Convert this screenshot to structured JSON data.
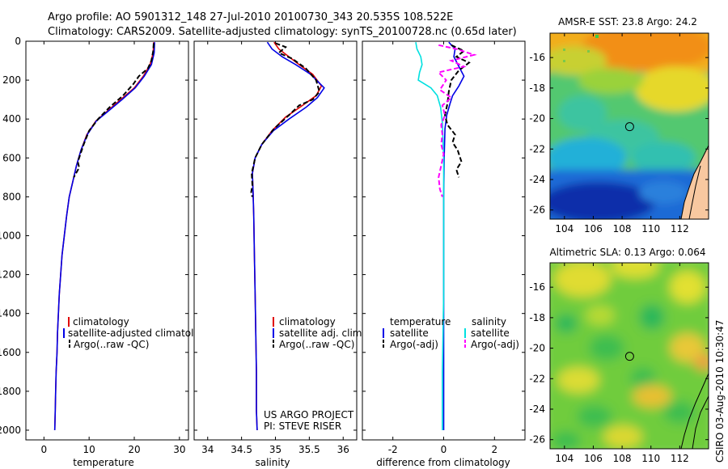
{
  "figure": {
    "title_line1": "Argo profile: AO 5901312_148 27-Jul-2010 20100730_343 20.535S 108.522E",
    "title_line2": "Climatology: CARS2009. Satellite-adjusted climatology: synTS_20100728.nc (0.65d later)",
    "credit": "CSIRO 03-Aug-2010 10:30:47",
    "project_line1": "US ARGO PROJECT",
    "project_line2": "PI: STEVE RISER"
  },
  "chart_data": [
    {
      "id": "temp",
      "type": "line",
      "xlabel": "temperature",
      "ylabel": "",
      "xlim": [
        -4,
        32
      ],
      "ylim": [
        2050,
        0
      ],
      "xticks": [
        0,
        10,
        20,
        30
      ],
      "yticks": [
        0,
        200,
        400,
        600,
        800,
        1000,
        1200,
        1400,
        1600,
        1800,
        2000
      ],
      "legend": [
        "climatology",
        "satellite-adjusted climatology",
        "Argo(..raw -QC)"
      ],
      "series": [
        {
          "name": "climatology",
          "color": "#e00000",
          "dash": "",
          "points": [
            [
              24.3,
              5
            ],
            [
              24.2,
              60
            ],
            [
              23.5,
              120
            ],
            [
              22.0,
              180
            ],
            [
              20.0,
              240
            ],
            [
              17.0,
              300
            ],
            [
              14.0,
              360
            ],
            [
              11.5,
              410
            ],
            [
              9.5,
              480
            ],
            [
              8.2,
              560
            ],
            [
              7.2,
              640
            ],
            [
              6.4,
              720
            ],
            [
              5.6,
              800
            ],
            [
              5.0,
              900
            ],
            [
              4.5,
              1000
            ],
            [
              4.0,
              1100
            ],
            [
              3.7,
              1200
            ],
            [
              3.4,
              1300
            ],
            [
              3.2,
              1400
            ],
            [
              3.0,
              1500
            ],
            [
              2.9,
              1600
            ],
            [
              2.7,
              1700
            ],
            [
              2.6,
              1800
            ],
            [
              2.5,
              1900
            ],
            [
              2.4,
              2000
            ]
          ]
        },
        {
          "name": "satellite-adjusted climatology",
          "color": "#0000e6",
          "dash": "",
          "points": [
            [
              24.5,
              5
            ],
            [
              24.4,
              60
            ],
            [
              23.8,
              120
            ],
            [
              22.2,
              180
            ],
            [
              20.2,
              240
            ],
            [
              17.3,
              300
            ],
            [
              14.2,
              360
            ],
            [
              11.6,
              410
            ],
            [
              9.6,
              480
            ],
            [
              8.2,
              560
            ],
            [
              7.2,
              640
            ],
            [
              6.4,
              720
            ],
            [
              5.6,
              800
            ],
            [
              5.0,
              900
            ],
            [
              4.5,
              1000
            ],
            [
              4.0,
              1100
            ],
            [
              3.7,
              1200
            ],
            [
              3.4,
              1300
            ],
            [
              3.2,
              1400
            ],
            [
              3.0,
              1500
            ],
            [
              2.9,
              1600
            ],
            [
              2.7,
              1700
            ],
            [
              2.6,
              1800
            ],
            [
              2.5,
              1900
            ],
            [
              2.4,
              2000
            ]
          ]
        },
        {
          "name": "Argo(..raw -QC)",
          "color": "#000000",
          "dash": "6,3",
          "points": [
            [
              24.3,
              10
            ],
            [
              24.2,
              50
            ],
            [
              23.8,
              100
            ],
            [
              23.0,
              140
            ],
            [
              21.0,
              180
            ],
            [
              19.8,
              220
            ],
            [
              17.5,
              280
            ],
            [
              14.5,
              340
            ],
            [
              12.0,
              400
            ],
            [
              10.0,
              460
            ],
            [
              8.8,
              530
            ],
            [
              7.5,
              620
            ],
            [
              7.8,
              650
            ],
            [
              6.6,
              700
            ]
          ]
        }
      ]
    },
    {
      "id": "sal",
      "type": "line",
      "xlabel": "salinity",
      "ylabel": "",
      "xlim": [
        33.8,
        36.2
      ],
      "ylim": [
        2050,
        0
      ],
      "xticks": [
        34,
        34.5,
        35,
        35.5,
        36
      ],
      "yticks": [],
      "legend": [
        "climatology",
        "satellite adj. clim.",
        "Argo(..raw -QC)"
      ],
      "series": [
        {
          "name": "climatology",
          "color": "#e00000",
          "dash": "",
          "points": [
            [
              34.98,
              5
            ],
            [
              35.05,
              40
            ],
            [
              35.2,
              80
            ],
            [
              35.35,
              120
            ],
            [
              35.55,
              170
            ],
            [
              35.68,
              230
            ],
            [
              35.6,
              280
            ],
            [
              35.4,
              330
            ],
            [
              35.15,
              390
            ],
            [
              34.95,
              460
            ],
            [
              34.8,
              530
            ],
            [
              34.7,
              600
            ],
            [
              34.66,
              680
            ],
            [
              34.67,
              780
            ],
            [
              34.68,
              900
            ],
            [
              34.69,
              1100
            ],
            [
              34.7,
              1300
            ],
            [
              34.71,
              1500
            ],
            [
              34.72,
              1700
            ],
            [
              34.72,
              1900
            ],
            [
              34.73,
              2000
            ]
          ]
        },
        {
          "name": "satellite adj. clim.",
          "color": "#0000e6",
          "dash": "",
          "points": [
            [
              34.88,
              5
            ],
            [
              34.95,
              40
            ],
            [
              35.1,
              80
            ],
            [
              35.3,
              120
            ],
            [
              35.52,
              170
            ],
            [
              35.72,
              240
            ],
            [
              35.62,
              290
            ],
            [
              35.45,
              340
            ],
            [
              35.2,
              400
            ],
            [
              34.97,
              460
            ],
            [
              34.8,
              530
            ],
            [
              34.7,
              600
            ],
            [
              34.66,
              680
            ],
            [
              34.67,
              780
            ],
            [
              34.68,
              900
            ],
            [
              34.69,
              1100
            ],
            [
              34.7,
              1300
            ],
            [
              34.71,
              1500
            ],
            [
              34.72,
              1700
            ],
            [
              34.72,
              1900
            ],
            [
              34.73,
              2000
            ]
          ]
        },
        {
          "name": "Argo(..raw -QC)",
          "color": "#000000",
          "dash": "6,3",
          "points": [
            [
              35.0,
              10
            ],
            [
              35.15,
              30
            ],
            [
              35.05,
              60
            ],
            [
              35.25,
              90
            ],
            [
              35.45,
              140
            ],
            [
              35.6,
              200
            ],
            [
              35.65,
              260
            ],
            [
              35.55,
              300
            ],
            [
              35.35,
              330
            ],
            [
              35.2,
              380
            ],
            [
              34.98,
              450
            ],
            [
              34.8,
              530
            ],
            [
              34.7,
              600
            ],
            [
              34.65,
              680
            ],
            [
              34.66,
              740
            ],
            [
              34.64,
              780
            ],
            [
              34.66,
              800
            ]
          ]
        }
      ]
    },
    {
      "id": "diff",
      "type": "line",
      "xlabel": "difference from climatology",
      "ylabel": "",
      "xlim": [
        -3.2,
        3.2
      ],
      "ylim": [
        2050,
        0
      ],
      "xticks": [
        -2,
        0,
        2
      ],
      "yticks": [],
      "legend_temperature": [
        "temperature",
        "satellite",
        "Argo(-adj)"
      ],
      "legend_salinity": [
        "salinity",
        "satellite",
        "Argo(-adj)"
      ],
      "series": [
        {
          "name": "temperature satellite",
          "color": "#0000e6",
          "dash": "",
          "points": [
            [
              0.2,
              5
            ],
            [
              0.45,
              40
            ],
            [
              0.4,
              80
            ],
            [
              0.6,
              130
            ],
            [
              0.8,
              180
            ],
            [
              0.6,
              230
            ],
            [
              0.35,
              280
            ],
            [
              0.25,
              320
            ],
            [
              0.12,
              380
            ],
            [
              0.05,
              450
            ],
            [
              0.02,
              600
            ],
            [
              0.0,
              800
            ],
            [
              0.0,
              1200
            ],
            [
              0.0,
              1600
            ],
            [
              0.0,
              2000
            ]
          ]
        },
        {
          "name": "salinity satellite",
          "color": "#00e0e0",
          "dash": "",
          "points": [
            [
              -1.1,
              5
            ],
            [
              -1.05,
              40
            ],
            [
              -0.9,
              80
            ],
            [
              -0.85,
              120
            ],
            [
              -0.95,
              160
            ],
            [
              -1.0,
              200
            ],
            [
              -0.5,
              240
            ],
            [
              -0.25,
              280
            ],
            [
              -0.12,
              340
            ],
            [
              -0.05,
              420
            ],
            [
              0.0,
              600
            ],
            [
              0.0,
              900
            ],
            [
              0.0,
              1300
            ],
            [
              -0.05,
              1700
            ],
            [
              -0.05,
              2000
            ]
          ]
        },
        {
          "name": "temperature Argo(-adj)",
          "color": "#000000",
          "dash": "6,3",
          "points": [
            [
              0.3,
              20
            ],
            [
              0.8,
              50
            ],
            [
              0.5,
              80
            ],
            [
              1.0,
              110
            ],
            [
              0.6,
              150
            ],
            [
              0.3,
              200
            ],
            [
              0.2,
              260
            ],
            [
              0.15,
              320
            ],
            [
              0.05,
              380
            ],
            [
              0.15,
              430
            ],
            [
              0.45,
              480
            ],
            [
              0.35,
              520
            ],
            [
              0.55,
              560
            ],
            [
              0.7,
              620
            ],
            [
              0.5,
              660
            ],
            [
              0.6,
              700
            ]
          ]
        },
        {
          "name": "salinity Argo(-adj)",
          "color": "#ff00ff",
          "dash": "6,3",
          "points": [
            [
              -0.2,
              20
            ],
            [
              0.5,
              40
            ],
            [
              1.2,
              70
            ],
            [
              0.3,
              100
            ],
            [
              0.8,
              130
            ],
            [
              -0.2,
              160
            ],
            [
              0.1,
              200
            ],
            [
              -0.15,
              250
            ],
            [
              0.3,
              290
            ],
            [
              -0.05,
              330
            ],
            [
              0.05,
              380
            ],
            [
              -0.1,
              430
            ],
            [
              -0.05,
              480
            ],
            [
              -0.1,
              530
            ],
            [
              0.0,
              580
            ],
            [
              -0.1,
              640
            ],
            [
              -0.2,
              700
            ],
            [
              -0.15,
              760
            ],
            [
              -0.05,
              800
            ]
          ]
        }
      ]
    },
    {
      "id": "sst_map",
      "type": "heatmap",
      "title": "AMSR-E SST: 23.8 Argo: 24.2",
      "xlim": [
        103,
        114
      ],
      "ylim": [
        -26.6,
        -14.4
      ],
      "xticks": [
        104,
        106,
        108,
        110,
        112
      ],
      "yticks": [
        -16,
        -18,
        -20,
        -22,
        -24,
        -26
      ],
      "marker": [
        108.522,
        -20.535
      ]
    },
    {
      "id": "sla_map",
      "type": "heatmap",
      "title": "Altimetric SLA: 0.13 Argo: 0.064",
      "xlim": [
        103,
        114
      ],
      "ylim": [
        -26.6,
        -14.4
      ],
      "xticks": [
        104,
        106,
        108,
        110,
        112
      ],
      "yticks": [
        -16,
        -18,
        -20,
        -22,
        -24,
        -26
      ],
      "marker": [
        108.522,
        -20.535
      ]
    }
  ]
}
